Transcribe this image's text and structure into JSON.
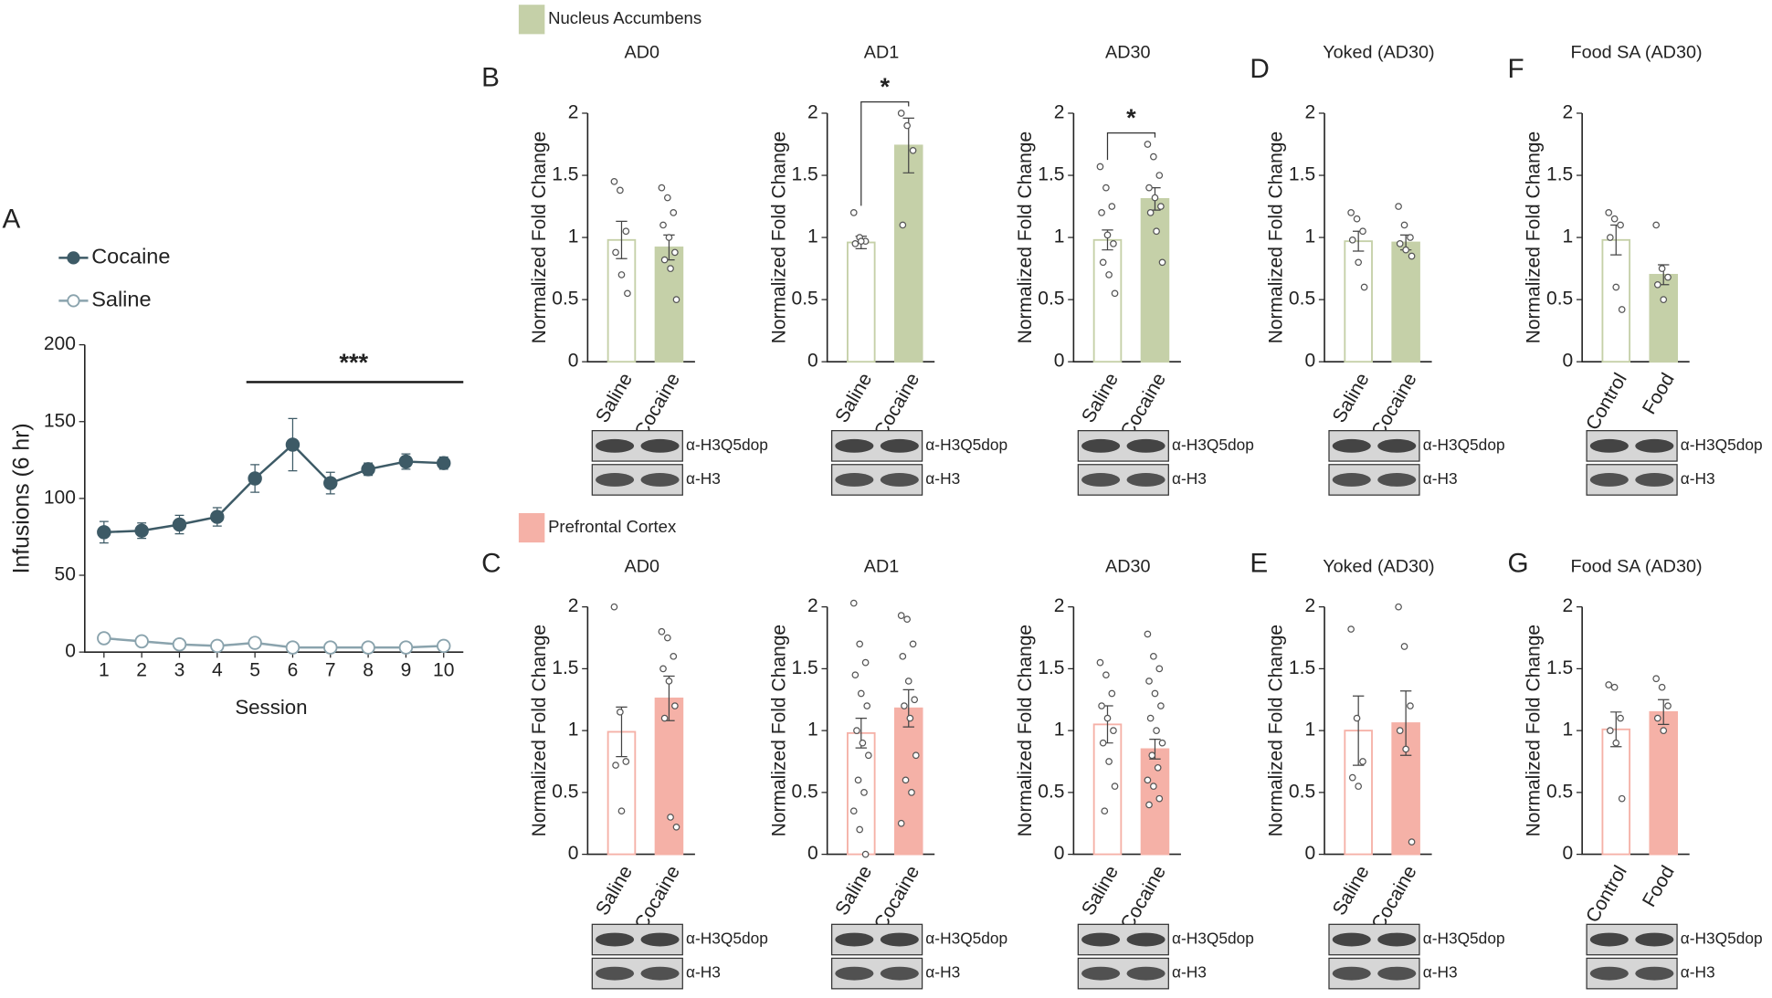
{
  "panel_labels": [
    "A",
    "B",
    "C",
    "D",
    "E",
    "F",
    "G"
  ],
  "regions": [
    {
      "name": "Nucleus Accumbens",
      "color": "#c5d0a8"
    },
    {
      "name": "Prefrontal Cortex",
      "color": "#f5b1a7"
    }
  ],
  "blot_labels": [
    "α-H3Q5dop",
    "α-H3"
  ],
  "chart_data": [
    {
      "type": "line",
      "categories": [
        "1",
        "2",
        "3",
        "4",
        "5",
        "6",
        "7",
        "8",
        "9",
        "10"
      ],
      "series": [
        {
          "name": "Cocaine",
          "color": "#3d5a66",
          "values": [
            78,
            79,
            83,
            88,
            113,
            135,
            110,
            119,
            124,
            123
          ],
          "errors": [
            7,
            5,
            6,
            6,
            9,
            17,
            7,
            4,
            5,
            4
          ]
        },
        {
          "name": "Saline",
          "color": "#8aa3ad",
          "values": [
            9,
            7,
            5,
            4,
            6,
            3,
            3,
            3,
            3,
            4
          ],
          "errors": [
            2,
            2,
            1,
            1,
            2,
            1,
            1,
            1,
            1,
            1
          ]
        }
      ],
      "ylim": [
        0,
        200
      ],
      "yticks": [
        0,
        50,
        100,
        150,
        200
      ],
      "ylabel": "Infusions (6 hr)",
      "xlabel": "Session",
      "annotation": "***"
    },
    {
      "type": "bar",
      "region": "Nucleus Accumbens",
      "title": "AD0",
      "color": "#c5d0a8",
      "categories": [
        "Saline",
        "Cocaine"
      ],
      "values": [
        0.98,
        0.92
      ],
      "errors": [
        0.15,
        0.1
      ],
      "points": [
        [
          1.45,
          1.38,
          1.05,
          0.88,
          0.7,
          0.55
        ],
        [
          1.4,
          1.32,
          1.2,
          1.1,
          1.0,
          0.88,
          0.82,
          0.75,
          0.5
        ]
      ],
      "ylim": [
        0,
        2
      ],
      "yticks": [
        0,
        0.5,
        1,
        1.5,
        2
      ],
      "ylabel": "Normalized Fold Change"
    },
    {
      "type": "bar",
      "region": "Nucleus Accumbens",
      "title": "AD1",
      "color": "#c5d0a8",
      "categories": [
        "Saline",
        "Cocaine"
      ],
      "values": [
        0.96,
        1.74
      ],
      "errors": [
        0.05,
        0.22
      ],
      "points": [
        [
          1.2,
          1.0,
          0.97,
          0.95,
          0.97
        ],
        [
          2.0,
          1.9,
          1.7,
          1.1
        ]
      ],
      "ylim": [
        0,
        2
      ],
      "yticks": [
        0,
        0.5,
        1,
        1.5,
        2
      ],
      "ylabel": "Normalized Fold Change",
      "significance": "*"
    },
    {
      "type": "bar",
      "region": "Nucleus Accumbens",
      "title": "AD30",
      "color": "#c5d0a8",
      "categories": [
        "Saline",
        "Cocaine"
      ],
      "values": [
        0.98,
        1.31
      ],
      "errors": [
        0.08,
        0.09
      ],
      "points": [
        [
          1.57,
          1.4,
          1.25,
          1.2,
          1.02,
          0.95,
          0.8,
          0.7,
          0.55
        ],
        [
          1.75,
          1.65,
          1.5,
          1.4,
          1.32,
          1.25,
          1.2,
          1.05,
          0.8
        ]
      ],
      "ylim": [
        0,
        2
      ],
      "yticks": [
        0,
        0.5,
        1,
        1.5,
        2
      ],
      "ylabel": "Normalized Fold Change",
      "significance": "*"
    },
    {
      "type": "bar",
      "region": "Nucleus Accumbens",
      "title": "Yoked (AD30)",
      "color": "#c5d0a8",
      "categories": [
        "Saline",
        "Cocaine"
      ],
      "values": [
        0.97,
        0.96
      ],
      "errors": [
        0.08,
        0.06
      ],
      "points": [
        [
          1.2,
          1.15,
          1.05,
          0.98,
          0.8,
          0.6
        ],
        [
          1.25,
          1.1,
          1.0,
          0.95,
          0.9,
          0.85
        ]
      ],
      "ylim": [
        0,
        2
      ],
      "yticks": [
        0,
        0.5,
        1,
        1.5,
        2
      ],
      "ylabel": "Normalized Fold Change"
    },
    {
      "type": "bar",
      "region": "Nucleus Accumbens",
      "title": "Food SA (AD30)",
      "color": "#c5d0a8",
      "categories": [
        "Control",
        "Food"
      ],
      "values": [
        0.98,
        0.7
      ],
      "errors": [
        0.12,
        0.08
      ],
      "points": [
        [
          1.2,
          1.15,
          1.1,
          1.0,
          0.6,
          0.42
        ],
        [
          1.1,
          0.75,
          0.68,
          0.62,
          0.5
        ]
      ],
      "ylim": [
        0,
        2
      ],
      "yticks": [
        0,
        0.5,
        1,
        1.5,
        2
      ],
      "ylabel": "Normalized Fold Change"
    },
    {
      "type": "bar",
      "region": "Prefrontal Cortex",
      "title": "AD0",
      "color": "#f5b1a7",
      "categories": [
        "Saline",
        "Cocaine"
      ],
      "values": [
        0.99,
        1.26
      ],
      "errors": [
        0.2,
        0.18
      ],
      "points": [
        [
          2.0,
          1.15,
          0.75,
          0.72,
          0.35
        ],
        [
          1.8,
          1.75,
          1.6,
          1.5,
          1.4,
          1.2,
          1.1,
          0.3,
          0.22
        ]
      ],
      "ylim": [
        0,
        2
      ],
      "yticks": [
        0,
        0.5,
        1,
        1.5,
        2
      ],
      "ylabel": "Normalized Fold Change"
    },
    {
      "type": "bar",
      "region": "Prefrontal Cortex",
      "title": "AD1",
      "color": "#f5b1a7",
      "categories": [
        "Saline",
        "Cocaine"
      ],
      "values": [
        0.98,
        1.18
      ],
      "errors": [
        0.12,
        0.15
      ],
      "points": [
        [
          2.03,
          1.7,
          1.55,
          1.45,
          1.3,
          1.2,
          1.0,
          0.9,
          0.8,
          0.6,
          0.5,
          0.35,
          0.2,
          0.0
        ],
        [
          1.93,
          1.9,
          1.7,
          1.6,
          1.4,
          1.25,
          1.2,
          1.1,
          0.8,
          0.6,
          0.5,
          0.25
        ]
      ],
      "ylim": [
        0,
        2
      ],
      "yticks": [
        0,
        0.5,
        1,
        1.5,
        2
      ],
      "ylabel": "Normalized Fold Change"
    },
    {
      "type": "bar",
      "region": "Prefrontal Cortex",
      "title": "AD30",
      "color": "#f5b1a7",
      "categories": [
        "Saline",
        "Cocaine"
      ],
      "values": [
        1.05,
        0.85
      ],
      "errors": [
        0.15,
        0.08
      ],
      "points": [
        [
          1.55,
          1.45,
          1.3,
          1.2,
          1.1,
          1.0,
          0.9,
          0.75,
          0.55,
          0.35
        ],
        [
          1.78,
          1.6,
          1.5,
          1.4,
          1.3,
          1.2,
          1.1,
          1.0,
          0.9,
          0.8,
          0.7,
          0.6,
          0.55,
          0.45,
          0.4
        ]
      ],
      "ylim": [
        0,
        2
      ],
      "yticks": [
        0,
        0.5,
        1,
        1.5,
        2
      ],
      "ylabel": "Normalized Fold Change"
    },
    {
      "type": "bar",
      "region": "Prefrontal Cortex",
      "title": "Yoked (AD30)",
      "color": "#f5b1a7",
      "categories": [
        "Saline",
        "Cocaine"
      ],
      "values": [
        1.0,
        1.06
      ],
      "errors": [
        0.28,
        0.26
      ],
      "points": [
        [
          1.82,
          1.1,
          0.75,
          0.62,
          0.55
        ],
        [
          2.0,
          1.68,
          1.2,
          1.0,
          0.85,
          0.1
        ]
      ],
      "ylim": [
        0,
        2
      ],
      "yticks": [
        0,
        0.5,
        1,
        1.5,
        2
      ],
      "ylabel": "Normalized Fold Change"
    },
    {
      "type": "bar",
      "region": "Prefrontal Cortex",
      "title": "Food SA (AD30)",
      "color": "#f5b1a7",
      "categories": [
        "Control",
        "Food"
      ],
      "values": [
        1.01,
        1.15
      ],
      "errors": [
        0.14,
        0.1
      ],
      "points": [
        [
          1.37,
          1.35,
          1.1,
          1.0,
          0.9,
          0.45
        ],
        [
          1.42,
          1.35,
          1.2,
          1.1,
          1.0
        ]
      ],
      "ylim": [
        0,
        2
      ],
      "yticks": [
        0,
        0.5,
        1,
        1.5,
        2
      ],
      "ylabel": "Normalized Fold Change"
    }
  ]
}
